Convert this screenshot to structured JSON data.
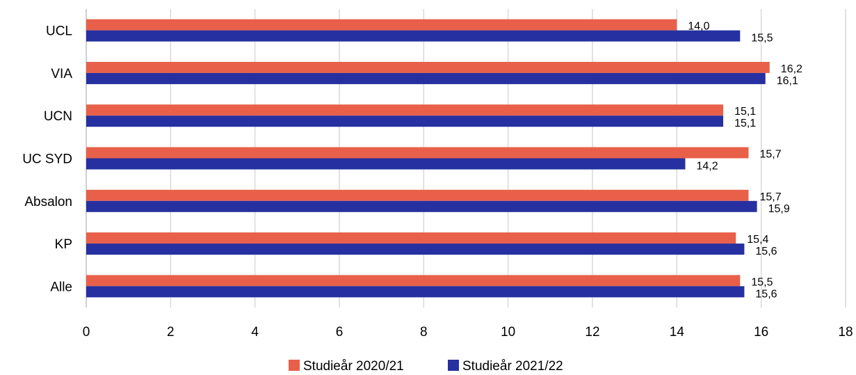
{
  "chart_data": {
    "type": "bar",
    "orientation": "horizontal",
    "categories": [
      "UCL",
      "VIA",
      "UCN",
      "UC SYD",
      "Absalon",
      "KP",
      "Alle"
    ],
    "series": [
      {
        "name": "Studieår 2020/21",
        "color": "#E8604A",
        "values": [
          14.0,
          16.2,
          15.1,
          15.7,
          15.7,
          15.4,
          15.5
        ],
        "labels": [
          "14,0",
          "16,2",
          "15,1",
          "15,7",
          "15,7",
          "15,4",
          "15,5"
        ]
      },
      {
        "name": "Studieår 2021/22",
        "color": "#2630A0",
        "values": [
          15.5,
          16.1,
          15.1,
          14.2,
          15.9,
          15.6,
          15.6
        ],
        "labels": [
          "15,5",
          "16,1",
          "15,1",
          "14,2",
          "15,9",
          "15,6",
          "15,6"
        ]
      }
    ],
    "x_ticks": [
      "0",
      "2",
      "4",
      "6",
      "8",
      "10",
      "12",
      "14",
      "16",
      "18"
    ],
    "xlim": [
      0,
      18
    ],
    "grid": true,
    "legend_position": "bottom"
  }
}
